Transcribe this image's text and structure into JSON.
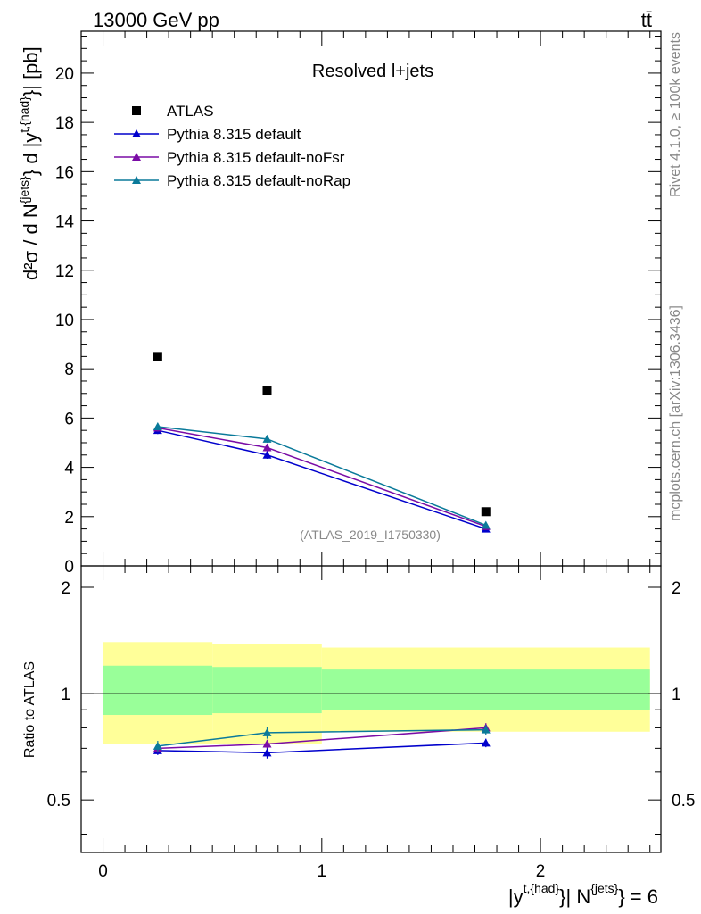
{
  "header": {
    "energy_label": "13000 GeV pp",
    "process_label": "tt̄"
  },
  "side_labels": {
    "rivet": "Rivet 4.1.0, ≥ 100k events",
    "mcplots": "mcplots.cern.ch [arXiv:1306.3436]"
  },
  "chart_data": [
    {
      "type": "scatter",
      "panel": "main",
      "title": "Resolved l+jets",
      "watermark": "(ATLAS_2019_I1750330)",
      "ylabel_parts": {
        "d2sigma": "d²σ / d N",
        "njets_sup": "{jets}",
        "mid": "} d |y",
        "yhad_sup": "t,{had}",
        "unit": "}| [pb]"
      },
      "xlim": [
        -0.1,
        2.55
      ],
      "ylim": [
        0,
        21.7
      ],
      "yticks": [
        0,
        2,
        4,
        6,
        8,
        10,
        12,
        14,
        16,
        18,
        20
      ],
      "yminor_step": 0.5,
      "legend_position": "top-left",
      "series": [
        {
          "name": "ATLAS",
          "color": "#000000",
          "marker": "square",
          "x": [
            0.25,
            0.75,
            1.75
          ],
          "y": [
            8.5,
            7.1,
            2.2
          ]
        },
        {
          "name": "Pythia 8.315 default",
          "color": "#0000cc",
          "marker": "triangle",
          "x": [
            0.25,
            0.75,
            1.75
          ],
          "y": [
            5.5,
            4.5,
            1.5
          ],
          "err": [
            0.15,
            0.15,
            0.08
          ]
        },
        {
          "name": "Pythia 8.315 default-noFsr",
          "color": "#7a0ca6",
          "marker": "triangle",
          "x": [
            0.25,
            0.75,
            1.75
          ],
          "y": [
            5.6,
            4.8,
            1.6
          ],
          "err": [
            0.15,
            0.15,
            0.08
          ]
        },
        {
          "name": "Pythia 8.315 default-noRap",
          "color": "#0a7a9a",
          "marker": "triangle",
          "x": [
            0.25,
            0.75,
            1.75
          ],
          "y": [
            5.65,
            5.15,
            1.65
          ],
          "err": [
            0.15,
            0.15,
            0.08
          ]
        }
      ]
    },
    {
      "type": "line",
      "panel": "ratio",
      "ylabel": "Ratio to ATLAS",
      "xlabel_parts": {
        "y": "|y",
        "yhad_sup": "t,{had}",
        "mid": "}| N",
        "njets_sup": "{jets}",
        "tail": "} = 6"
      },
      "xlim": [
        -0.1,
        2.55
      ],
      "ylim": [
        0.355,
        2.3
      ],
      "log_y": true,
      "yticks": [
        0.5,
        1,
        2
      ],
      "ytick_labels": [
        "0.5",
        "1",
        "2"
      ],
      "xticks": [
        0,
        1,
        2
      ],
      "xtick_labels": [
        "0",
        "1",
        "2"
      ],
      "reference_line": 1,
      "bands": [
        {
          "x0": 0.0,
          "x1": 0.5,
          "yellow": [
            0.72,
            1.4
          ],
          "green": [
            0.87,
            1.2
          ]
        },
        {
          "x0": 0.5,
          "x1": 1.0,
          "yellow": [
            0.72,
            1.38
          ],
          "green": [
            0.88,
            1.19
          ]
        },
        {
          "x0": 1.0,
          "x1": 2.5,
          "yellow": [
            0.78,
            1.35
          ],
          "green": [
            0.9,
            1.17
          ]
        }
      ],
      "band_colors": {
        "yellow": "#ffff99",
        "green": "#99ff99"
      },
      "series": [
        {
          "name": "Pythia 8.315 default",
          "color": "#0000cc",
          "x": [
            0.25,
            0.75,
            1.75
          ],
          "y": [
            0.69,
            0.68,
            0.725
          ],
          "err": [
            0.02,
            0.025,
            0.02
          ]
        },
        {
          "name": "Pythia 8.315 default-noFsr",
          "color": "#7a0ca6",
          "x": [
            0.25,
            0.75,
            1.75
          ],
          "y": [
            0.7,
            0.72,
            0.8
          ],
          "err": [
            0.02,
            0.02,
            0.025
          ]
        },
        {
          "name": "Pythia 8.315 default-noRap",
          "color": "#0a7a9a",
          "x": [
            0.25,
            0.75,
            1.75
          ],
          "y": [
            0.71,
            0.775,
            0.79
          ],
          "err": [
            0.025,
            0.03,
            0.025
          ]
        }
      ]
    }
  ]
}
